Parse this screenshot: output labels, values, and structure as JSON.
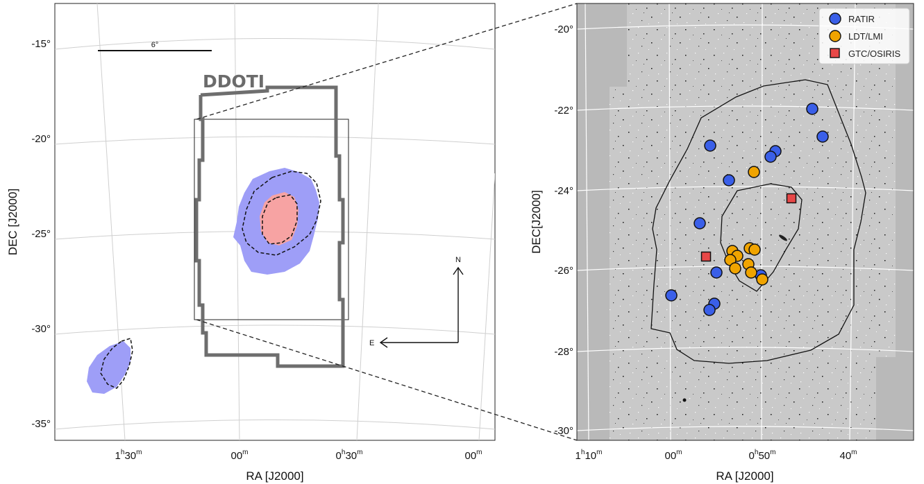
{
  "left_panel": {
    "y_label": "DEC [J2000]",
    "x_label": "RA [J2000]",
    "y_ticks": [
      "-15°",
      "-20°",
      "-25°",
      "-30°",
      "-35°"
    ],
    "x_ticks": [
      {
        "main": "1",
        "sup1": "h",
        "mid": "30",
        "sup2": "m"
      },
      {
        "main": "00",
        "sup1": "",
        "mid": "",
        "sup2": "m"
      },
      {
        "main": "0",
        "sup1": "h",
        "mid": "30",
        "sup2": "m"
      },
      {
        "main": "00",
        "sup1": "",
        "mid": "",
        "sup2": "m"
      }
    ],
    "scale_bar": "6°",
    "footprint_label": "DDOTI",
    "compass_n": "N",
    "compass_e": "E",
    "colors": {
      "outer_region": "#9e9ef7",
      "inner_region": "#f7a3a3",
      "footprint": "#6e6e6e"
    }
  },
  "right_panel": {
    "y_label": "DEC[J2000]",
    "x_label": "RA [J2000]",
    "y_ticks": [
      "-20°",
      "-22°",
      "-24°",
      "-26°",
      "-28°",
      "-30°"
    ],
    "x_ticks": [
      {
        "main": "1",
        "sup1": "h",
        "mid": "10",
        "sup2": "m"
      },
      {
        "main": "00",
        "sup1": "",
        "mid": "",
        "sup2": "m"
      },
      {
        "main": "0",
        "sup1": "h",
        "mid": "50",
        "sup2": "m"
      },
      {
        "main": "40",
        "sup1": "",
        "mid": "",
        "sup2": "m"
      }
    ],
    "legend": [
      {
        "label": "RATIR",
        "marker": "circle",
        "color": "#3a5fe8"
      },
      {
        "label": "LDT/LMI",
        "marker": "circle",
        "color": "#f0a400"
      },
      {
        "label": "GTC/OSIRIS",
        "marker": "square",
        "color": "#e84848"
      }
    ],
    "ratir_points": [
      [
        1170,
        157
      ],
      [
        1185,
        197
      ],
      [
        1023,
        210
      ],
      [
        1117,
        218
      ],
      [
        1110,
        226
      ],
      [
        1050,
        260
      ],
      [
        1008,
        322
      ],
      [
        1032,
        393
      ],
      [
        1096,
        397
      ],
      [
        1029,
        438
      ],
      [
        1022,
        447
      ],
      [
        967,
        426
      ]
    ],
    "ldt_points": [
      [
        1086,
        248
      ],
      [
        1055,
        362
      ],
      [
        1062,
        369
      ],
      [
        1052,
        375
      ],
      [
        1080,
        358
      ],
      [
        1087,
        360
      ],
      [
        1059,
        387
      ],
      [
        1078,
        381
      ],
      [
        1082,
        393
      ],
      [
        1098,
        403
      ]
    ],
    "gtc_points": [
      [
        1140,
        286
      ],
      [
        1017,
        370
      ]
    ]
  }
}
